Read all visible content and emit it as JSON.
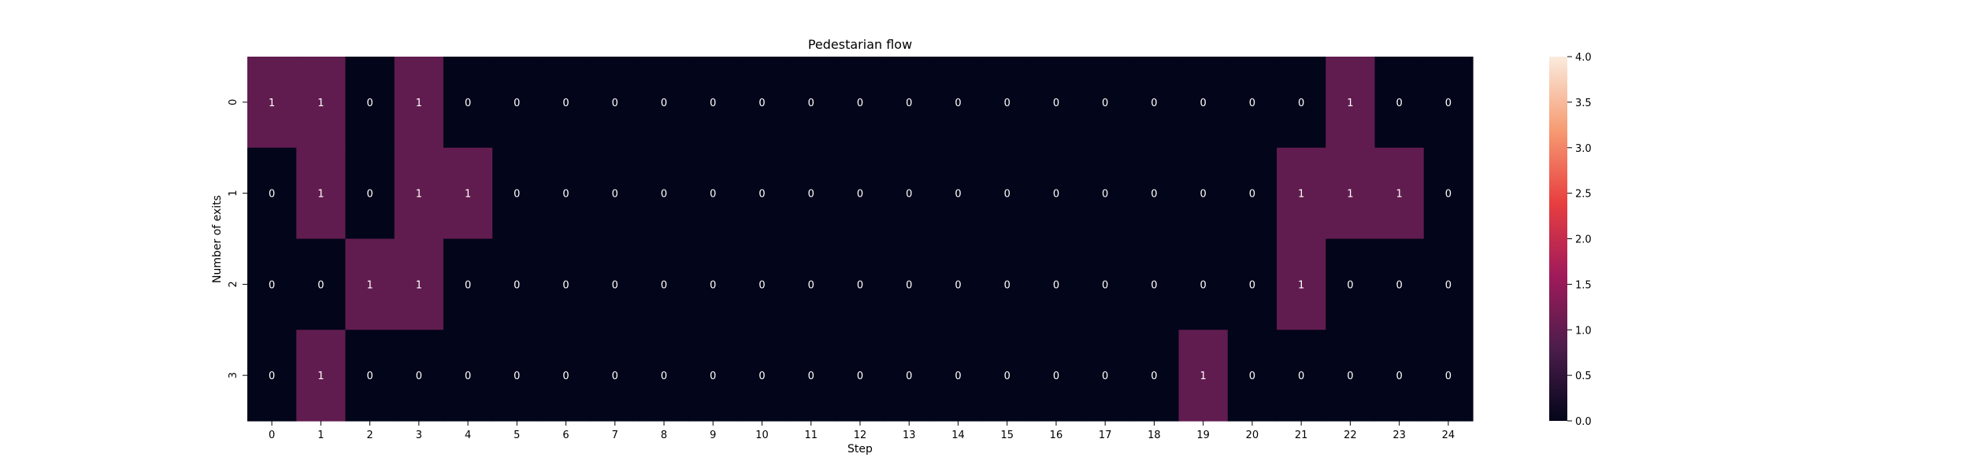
{
  "chart_data": {
    "type": "heatmap",
    "title": "Pedestarian flow",
    "xlabel": "Step",
    "ylabel": "Number of exits",
    "x_categories": [
      "0",
      "1",
      "2",
      "3",
      "4",
      "5",
      "6",
      "7",
      "8",
      "9",
      "10",
      "11",
      "12",
      "13",
      "14",
      "15",
      "16",
      "17",
      "18",
      "19",
      "20",
      "21",
      "22",
      "23",
      "24"
    ],
    "y_categories": [
      "0",
      "1",
      "2",
      "3"
    ],
    "values": [
      [
        1,
        1,
        0,
        1,
        0,
        0,
        0,
        0,
        0,
        0,
        0,
        0,
        0,
        0,
        0,
        0,
        0,
        0,
        0,
        0,
        0,
        0,
        1,
        0,
        0
      ],
      [
        0,
        1,
        0,
        1,
        1,
        0,
        0,
        0,
        0,
        0,
        0,
        0,
        0,
        0,
        0,
        0,
        0,
        0,
        0,
        0,
        0,
        1,
        1,
        1,
        0
      ],
      [
        0,
        0,
        1,
        1,
        0,
        0,
        0,
        0,
        0,
        0,
        0,
        0,
        0,
        0,
        0,
        0,
        0,
        0,
        0,
        0,
        0,
        1,
        0,
        0,
        0
      ],
      [
        0,
        1,
        0,
        0,
        0,
        0,
        0,
        0,
        0,
        0,
        0,
        0,
        0,
        0,
        0,
        0,
        0,
        0,
        0,
        1,
        0,
        0,
        0,
        0,
        0
      ]
    ],
    "annotated": true,
    "colorbar": {
      "range": [
        0,
        4
      ],
      "ticks": [
        "0.0",
        "0.5",
        "1.0",
        "1.5",
        "2.0",
        "2.5",
        "3.0",
        "3.5",
        "4.0"
      ],
      "colormap": "rocket",
      "stops": [
        "#03051a",
        "#4c1d4b",
        "#a11a5b",
        "#e83f3f",
        "#f69c73",
        "#faebdd"
      ]
    },
    "grid": false
  }
}
